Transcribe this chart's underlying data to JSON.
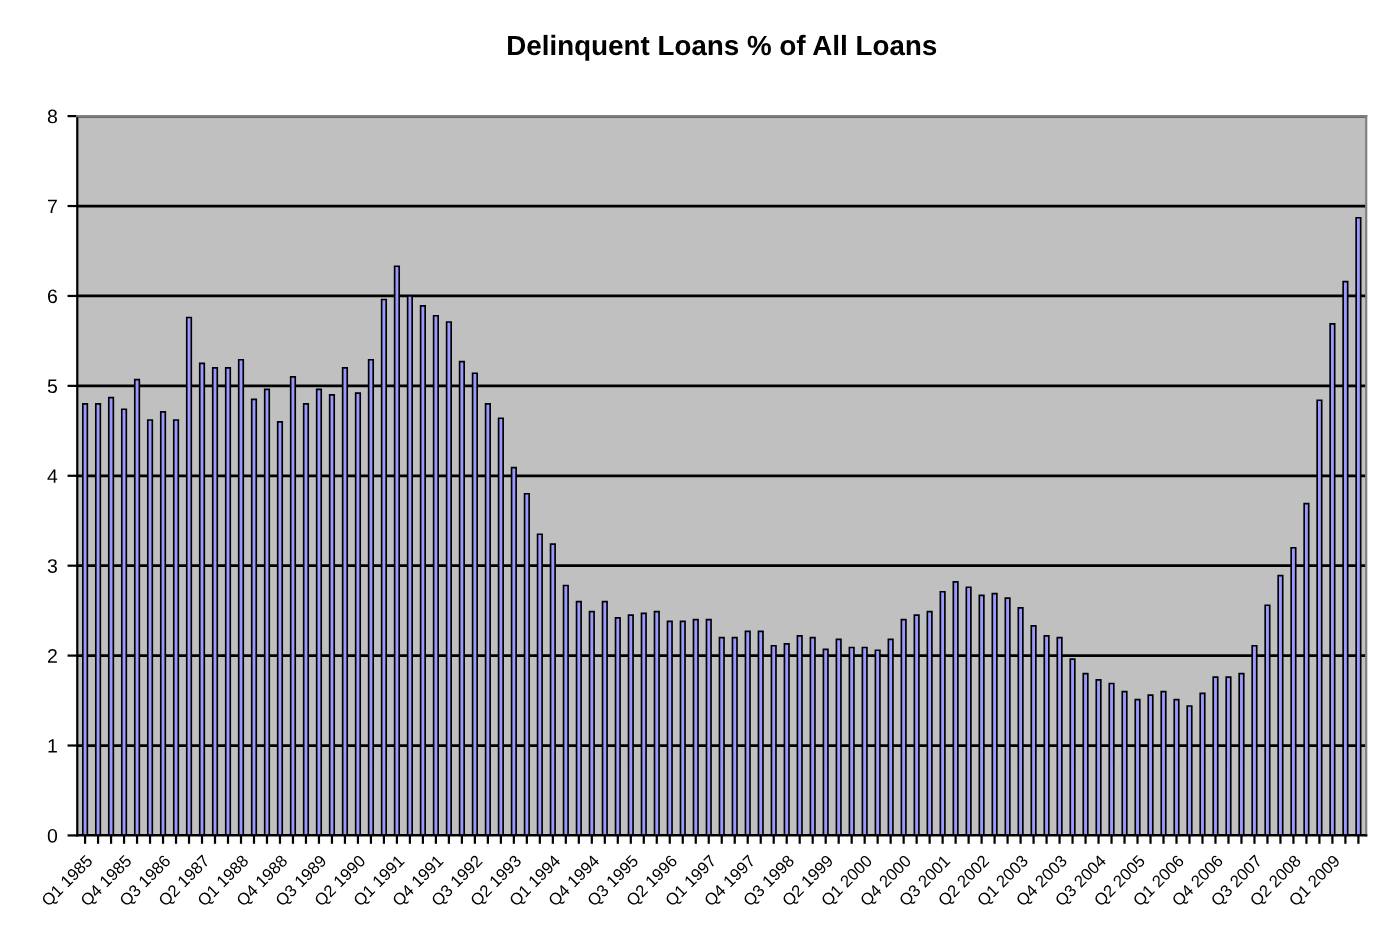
{
  "chart_data": {
    "type": "bar",
    "title": "Delinquent Loans % of All Loans",
    "categories": [
      "Q1 1985",
      null,
      null,
      "Q4 1985",
      null,
      null,
      "Q3 1986",
      null,
      null,
      "Q2 1987",
      null,
      null,
      "Q1 1988",
      null,
      null,
      "Q4 1988",
      null,
      null,
      "Q3 1989",
      null,
      null,
      "Q2 1990",
      null,
      null,
      "Q1 1991",
      null,
      null,
      "Q4 1991",
      null,
      null,
      "Q3 1992",
      null,
      null,
      "Q2 1993",
      null,
      null,
      "Q1 1994",
      null,
      null,
      "Q4 1994",
      null,
      null,
      "Q3 1995",
      null,
      null,
      "Q2 1996",
      null,
      null,
      "Q1 1997",
      null,
      null,
      "Q4 1997",
      null,
      null,
      "Q3 1998",
      null,
      null,
      "Q2 1999",
      null,
      null,
      "Q1 2000",
      null,
      null,
      "Q4 2000",
      null,
      null,
      "Q3 2001",
      null,
      null,
      "Q2 2002",
      null,
      null,
      "Q1 2003",
      null,
      null,
      "Q4 2003",
      null,
      null,
      "Q3 2004",
      null,
      null,
      "Q2 2005",
      null,
      null,
      "Q1 2006",
      null,
      null,
      "Q4 2006",
      null,
      null,
      "Q3 2007",
      null,
      null,
      "Q2 2008",
      null,
      null,
      "Q1 2009",
      null,
      null
    ],
    "values": [
      4.8,
      4.8,
      4.87,
      4.74,
      5.07,
      4.62,
      4.71,
      4.62,
      5.76,
      5.25,
      5.2,
      5.2,
      5.29,
      4.85,
      4.96,
      4.6,
      5.1,
      4.8,
      4.96,
      4.9,
      5.2,
      4.92,
      5.29,
      5.96,
      6.33,
      6.0,
      5.89,
      5.78,
      5.71,
      5.27,
      5.14,
      4.8,
      4.64,
      4.09,
      3.8,
      3.35,
      3.24,
      2.78,
      2.6,
      2.49,
      2.6,
      2.42,
      2.45,
      2.47,
      2.49,
      2.38,
      2.38,
      2.4,
      2.4,
      2.2,
      2.2,
      2.27,
      2.27,
      2.11,
      2.13,
      2.22,
      2.2,
      2.07,
      2.18,
      2.09,
      2.09,
      2.06,
      2.18,
      2.4,
      2.45,
      2.49,
      2.71,
      2.82,
      2.76,
      2.67,
      2.69,
      2.64,
      2.53,
      2.33,
      2.22,
      2.2,
      1.96,
      1.8,
      1.73,
      1.69,
      1.6,
      1.51,
      1.56,
      1.6,
      1.51,
      1.44,
      1.58,
      1.76,
      1.76,
      1.8,
      2.11,
      2.56,
      2.89,
      3.2,
      3.69,
      4.84,
      5.69,
      6.16,
      6.87
    ],
    "color": "#9999ff",
    "ylim": [
      0,
      8
    ],
    "yticks": [
      0,
      1,
      2,
      3,
      4,
      5,
      6,
      7,
      8
    ],
    "grid": "y",
    "legend": false
  }
}
